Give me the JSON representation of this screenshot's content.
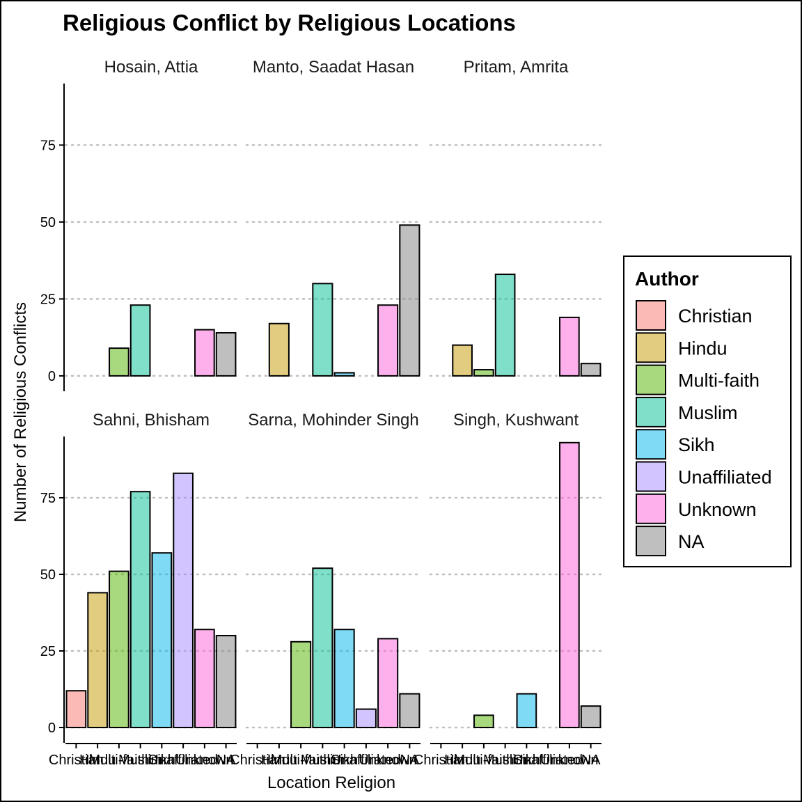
{
  "chart_data": {
    "type": "bar",
    "title": "Religious Conflict by Religious Locations",
    "xlabel": "Location Religion",
    "ylabel": "Number of Religious Conflicts",
    "ylim": [
      -5,
      95
    ],
    "yticks": [
      0,
      25,
      50,
      75
    ],
    "grid": "horizontal-dotted",
    "legend": {
      "title": "Author",
      "placement": "right",
      "entries": [
        {
          "name": "Christian",
          "color": "#F8766D"
        },
        {
          "name": "Hindu",
          "color": "#C49A00"
        },
        {
          "name": "Multi-faith",
          "color": "#53B400"
        },
        {
          "name": "Muslim",
          "color": "#00C094"
        },
        {
          "name": "Sikh",
          "color": "#00B6EB"
        },
        {
          "name": "Unaffiliated",
          "color": "#A58AFF"
        },
        {
          "name": "Unknown",
          "color": "#FB61D7"
        },
        {
          "name": "NA",
          "color": "#7F7F7F"
        }
      ]
    },
    "categories": [
      "Christian",
      "Hindu",
      "Multi-faith",
      "Muslim",
      "Sikh",
      "Unaffiliated",
      "Unknown",
      "NA"
    ],
    "panels": [
      {
        "name": "Hosain, Attia",
        "values": [
          null,
          null,
          9,
          23,
          null,
          null,
          15,
          14
        ]
      },
      {
        "name": "Manto, Saadat Hasan",
        "values": [
          null,
          17,
          null,
          30,
          1,
          null,
          23,
          49
        ]
      },
      {
        "name": "Pritam, Amrita",
        "values": [
          null,
          10,
          2,
          33,
          null,
          null,
          19,
          4
        ]
      },
      {
        "name": "Sahni, Bhisham",
        "values": [
          12,
          44,
          51,
          77,
          57,
          83,
          32,
          30
        ]
      },
      {
        "name": "Sarna, Mohinder Singh",
        "values": [
          null,
          null,
          28,
          52,
          32,
          6,
          29,
          11
        ]
      },
      {
        "name": "Singh, Kushwant",
        "values": [
          null,
          null,
          4,
          null,
          11,
          null,
          93,
          7
        ]
      }
    ]
  }
}
